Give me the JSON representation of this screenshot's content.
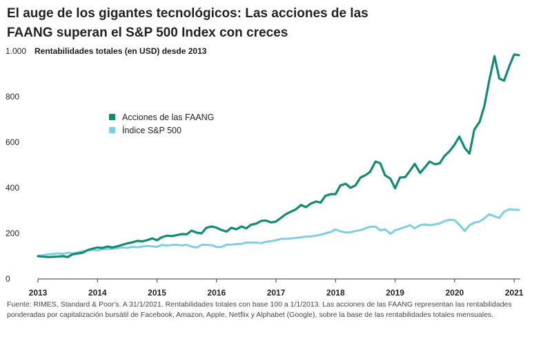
{
  "title_lines": [
    "El auge de los gigantes tecnológicos: Las acciones de las",
    "FAANG superan el S&P 500 Index con creces"
  ],
  "source": "Fuente: RIMES, Standard & Poor's. A 31/1/2021. Rentabilidades totales con base 100 a 1/1/2013. Las acciones de las FAANG representan las rentabilidades ponderadas por capitalización bursátil de Facebook, Amazon, Apple, Netflix y Alphabet (Google), sobre la base de las rentabilidades totales mensuales.",
  "colors": {
    "faang": "#138a72",
    "sp500": "#7fcfe0",
    "axis": "#333333"
  },
  "chart_data": {
    "type": "line",
    "title": "El auge de los gigantes tecnológicos: Las acciones de las FAANG superan el S&P 500 Index con creces",
    "ylabel": "Rentabilidades totales (en USD) desde 2013",
    "xlabel": "",
    "ylim": [
      0,
      1000
    ],
    "xlim": [
      2013.0,
      2021.08
    ],
    "y_ticks": [
      0,
      200,
      400,
      600,
      800,
      1000
    ],
    "y_tick_labels": [
      "0",
      "200",
      "400",
      "600",
      "800",
      "1.000"
    ],
    "x_ticks": [
      2013,
      2014,
      2015,
      2016,
      2017,
      2018,
      2019,
      2020,
      2021
    ],
    "x_tick_labels": [
      "2013",
      "2014",
      "2015",
      "2016",
      "2017",
      "2018",
      "2019",
      "2020",
      "2021"
    ],
    "legend_position": "upper-left",
    "series": [
      {
        "name": "Acciones de las FAANG",
        "x": [
          2013.0,
          2013.08,
          2013.17,
          2013.25,
          2013.33,
          2013.42,
          2013.5,
          2013.58,
          2013.67,
          2013.75,
          2013.83,
          2013.92,
          2014.0,
          2014.08,
          2014.17,
          2014.25,
          2014.33,
          2014.42,
          2014.5,
          2014.58,
          2014.67,
          2014.75,
          2014.83,
          2014.92,
          2015.0,
          2015.08,
          2015.17,
          2015.25,
          2015.33,
          2015.42,
          2015.5,
          2015.58,
          2015.67,
          2015.75,
          2015.83,
          2015.92,
          2016.0,
          2016.08,
          2016.17,
          2016.25,
          2016.33,
          2016.42,
          2016.5,
          2016.58,
          2016.67,
          2016.75,
          2016.83,
          2016.92,
          2017.0,
          2017.08,
          2017.17,
          2017.25,
          2017.33,
          2017.42,
          2017.5,
          2017.58,
          2017.67,
          2017.75,
          2017.83,
          2017.92,
          2018.0,
          2018.08,
          2018.17,
          2018.25,
          2018.33,
          2018.42,
          2018.5,
          2018.58,
          2018.67,
          2018.75,
          2018.83,
          2018.92,
          2019.0,
          2019.08,
          2019.17,
          2019.25,
          2019.33,
          2019.42,
          2019.5,
          2019.58,
          2019.67,
          2019.75,
          2019.83,
          2019.92,
          2020.0,
          2020.08,
          2020.17,
          2020.25,
          2020.33,
          2020.42,
          2020.5,
          2020.58,
          2020.67,
          2020.75,
          2020.83,
          2020.92,
          2021.0,
          2021.08
        ],
        "values": [
          100,
          98,
          96,
          97,
          98,
          100,
          96,
          108,
          112,
          115,
          126,
          133,
          138,
          136,
          142,
          138,
          143,
          150,
          156,
          160,
          167,
          165,
          170,
          178,
          170,
          183,
          190,
          188,
          192,
          197,
          196,
          212,
          203,
          200,
          225,
          230,
          225,
          215,
          208,
          225,
          218,
          230,
          222,
          238,
          243,
          255,
          256,
          248,
          252,
          268,
          285,
          295,
          305,
          325,
          315,
          330,
          340,
          335,
          365,
          372,
          372,
          410,
          418,
          400,
          410,
          445,
          455,
          470,
          515,
          508,
          455,
          440,
          398,
          445,
          447,
          475,
          505,
          465,
          490,
          515,
          503,
          508,
          540,
          562,
          590,
          625,
          575,
          550,
          655,
          690,
          760,
          870,
          978,
          880,
          870,
          935,
          985,
          982
        ]
      },
      {
        "name": "Índice S&P 500",
        "x": [
          2013.0,
          2013.08,
          2013.17,
          2013.25,
          2013.33,
          2013.42,
          2013.5,
          2013.58,
          2013.67,
          2013.75,
          2013.83,
          2013.92,
          2014.0,
          2014.08,
          2014.17,
          2014.25,
          2014.33,
          2014.42,
          2014.5,
          2014.58,
          2014.67,
          2014.75,
          2014.83,
          2014.92,
          2015.0,
          2015.08,
          2015.17,
          2015.25,
          2015.33,
          2015.42,
          2015.5,
          2015.58,
          2015.67,
          2015.75,
          2015.83,
          2015.92,
          2016.0,
          2016.08,
          2016.17,
          2016.25,
          2016.33,
          2016.42,
          2016.5,
          2016.58,
          2016.67,
          2016.75,
          2016.83,
          2016.92,
          2017.0,
          2017.08,
          2017.17,
          2017.25,
          2017.33,
          2017.42,
          2017.5,
          2017.58,
          2017.67,
          2017.75,
          2017.83,
          2017.92,
          2018.0,
          2018.08,
          2018.17,
          2018.25,
          2018.33,
          2018.42,
          2018.5,
          2018.58,
          2018.67,
          2018.75,
          2018.83,
          2018.92,
          2019.0,
          2019.08,
          2019.17,
          2019.25,
          2019.33,
          2019.42,
          2019.5,
          2019.58,
          2019.67,
          2019.75,
          2019.83,
          2019.92,
          2020.0,
          2020.08,
          2020.17,
          2020.25,
          2020.33,
          2020.42,
          2020.5,
          2020.58,
          2020.67,
          2020.75,
          2020.83,
          2020.92,
          2021.0,
          2021.08
        ],
        "values": [
          100,
          104,
          108,
          110,
          112,
          110,
          115,
          112,
          116,
          121,
          125,
          128,
          125,
          130,
          131,
          132,
          135,
          138,
          136,
          141,
          139,
          142,
          145,
          143,
          141,
          149,
          147,
          149,
          150,
          147,
          150,
          142,
          138,
          150,
          150,
          148,
          140,
          140,
          150,
          151,
          153,
          154,
          160,
          160,
          160,
          157,
          163,
          166,
          170,
          176,
          176,
          178,
          180,
          183,
          186,
          186,
          190,
          194,
          200,
          206,
          217,
          209,
          204,
          205,
          210,
          214,
          222,
          229,
          230,
          213,
          218,
          198,
          214,
          220,
          228,
          236,
          222,
          236,
          239,
          236,
          239,
          244,
          254,
          260,
          258,
          238,
          210,
          236,
          247,
          252,
          266,
          284,
          275,
          268,
          295,
          306,
          304,
          303
        ]
      }
    ]
  }
}
